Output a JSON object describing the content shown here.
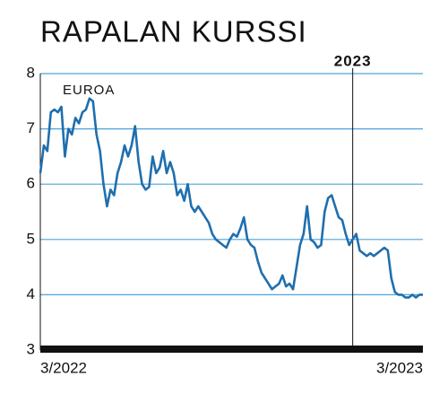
{
  "chart_data": {
    "type": "line",
    "title": "RAPALAN KURSSI",
    "ylabel": "EUROA",
    "color": "#1f6fae",
    "grid": true,
    "grid_color": "#4aa3dc",
    "ylim": [
      3,
      8
    ],
    "yticks": [
      3,
      4,
      5,
      6,
      7,
      8
    ],
    "vline": {
      "label": "2023",
      "at": 89
    },
    "categories": [
      "3/2022",
      null,
      null,
      null,
      null,
      null,
      null,
      null,
      null,
      null,
      null,
      null,
      null,
      null,
      null,
      null,
      null,
      null,
      null,
      null,
      null,
      null,
      null,
      null,
      null,
      null,
      null,
      null,
      null,
      null,
      null,
      null,
      null,
      null,
      null,
      null,
      null,
      null,
      null,
      null,
      null,
      null,
      null,
      null,
      null,
      null,
      null,
      null,
      null,
      null,
      null,
      null,
      null,
      null,
      null,
      null,
      null,
      null,
      null,
      null,
      null,
      null,
      null,
      null,
      null,
      null,
      null,
      null,
      null,
      null,
      null,
      null,
      null,
      null,
      null,
      null,
      null,
      null,
      null,
      null,
      null,
      null,
      null,
      null,
      null,
      null,
      null,
      null,
      null,
      null,
      null,
      null,
      null,
      null,
      null,
      null,
      null,
      null,
      null,
      null,
      null,
      null,
      null,
      null,
      null,
      null,
      null,
      null,
      null,
      "3/2023"
    ],
    "values": [
      6.2,
      6.7,
      6.6,
      7.3,
      7.35,
      7.3,
      7.4,
      6.5,
      7.0,
      6.9,
      7.2,
      7.1,
      7.3,
      7.35,
      7.55,
      7.5,
      6.9,
      6.6,
      6.0,
      5.6,
      5.9,
      5.8,
      6.2,
      6.4,
      6.7,
      6.5,
      6.7,
      7.05,
      6.4,
      6.0,
      5.9,
      5.95,
      6.5,
      6.2,
      6.3,
      6.6,
      6.2,
      6.4,
      6.2,
      5.8,
      5.9,
      5.7,
      6.0,
      5.6,
      5.5,
      5.6,
      5.5,
      5.4,
      5.3,
      5.1,
      5.0,
      4.95,
      4.9,
      4.85,
      5.0,
      5.1,
      5.05,
      5.2,
      5.4,
      5.0,
      4.9,
      4.85,
      4.6,
      4.4,
      4.3,
      4.2,
      4.1,
      4.15,
      4.2,
      4.35,
      4.15,
      4.2,
      4.1,
      4.5,
      4.9,
      5.1,
      5.6,
      5.0,
      4.95,
      4.85,
      4.9,
      5.5,
      5.75,
      5.8,
      5.6,
      5.4,
      5.35,
      5.1,
      4.9,
      5.0,
      5.1,
      4.8,
      4.75,
      4.7,
      4.75,
      4.7,
      4.75,
      4.8,
      4.85,
      4.8,
      4.3,
      4.05,
      4.0,
      4.0,
      3.95,
      3.95,
      4.0,
      3.95,
      4.0,
      4.0
    ]
  }
}
